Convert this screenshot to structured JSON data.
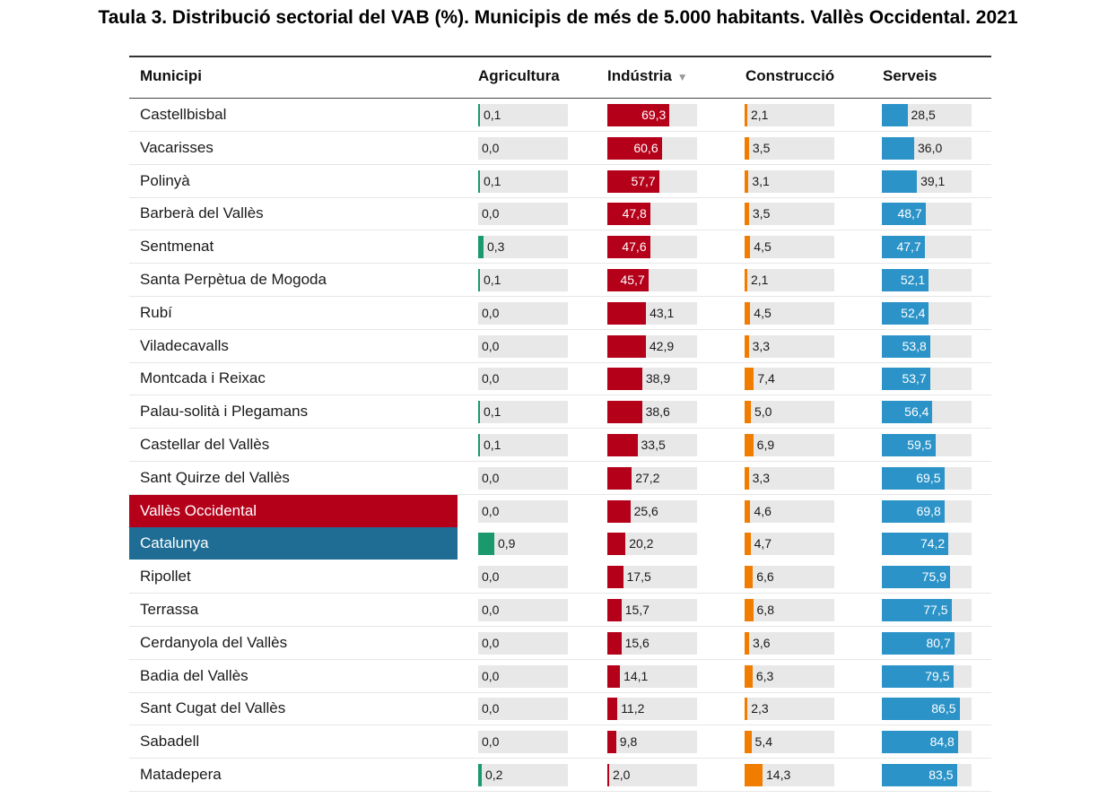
{
  "title": "Taula 3. Distribució sectorial del VAB (%). Municipis de més de 5.000 habitants. Vallès Occidental. 2021",
  "colors": {
    "agricultura": "#1a9a6c",
    "industria": "#b5001a",
    "construccio": "#f07c00",
    "serveis": "#2b93c8",
    "track": "#e8e8e8",
    "highlight_comarca": "#b5001a",
    "highlight_catalunya": "#1f6d94"
  },
  "sort_icon": "triangle-down-icon",
  "chart_data": {
    "type": "table",
    "columns": [
      "Municipi",
      "Agricultura",
      "Indústria",
      "Construcció",
      "Serveis"
    ],
    "sorted_by": "Indústria",
    "sort_order": "descending",
    "rows": [
      {
        "name": "Castellbisbal",
        "agricultura": "0,1",
        "industria": "69,3",
        "construccio": "2,1",
        "serveis": "28,5"
      },
      {
        "name": "Vacarisses",
        "agricultura": "0,0",
        "industria": "60,6",
        "construccio": "3,5",
        "serveis": "36,0"
      },
      {
        "name": "Polinyà",
        "agricultura": "0,1",
        "industria": "57,7",
        "construccio": "3,1",
        "serveis": "39,1"
      },
      {
        "name": "Barberà del Vallès",
        "agricultura": "0,0",
        "industria": "47,8",
        "construccio": "3,5",
        "serveis": "48,7"
      },
      {
        "name": "Sentmenat",
        "agricultura": "0,3",
        "industria": "47,6",
        "construccio": "4,5",
        "serveis": "47,7"
      },
      {
        "name": "Santa Perpètua de Mogoda",
        "agricultura": "0,1",
        "industria": "45,7",
        "construccio": "2,1",
        "serveis": "52,1"
      },
      {
        "name": "Rubí",
        "agricultura": "0,0",
        "industria": "43,1",
        "construccio": "4,5",
        "serveis": "52,4"
      },
      {
        "name": "Viladecavalls",
        "agricultura": "0,0",
        "industria": "42,9",
        "construccio": "3,3",
        "serveis": "53,8"
      },
      {
        "name": "Montcada i Reixac",
        "agricultura": "0,0",
        "industria": "38,9",
        "construccio": "7,4",
        "serveis": "53,7"
      },
      {
        "name": "Palau-solità i Plegamans",
        "agricultura": "0,1",
        "industria": "38,6",
        "construccio": "5,0",
        "serveis": "56,4"
      },
      {
        "name": "Castellar del Vallès",
        "agricultura": "0,1",
        "industria": "33,5",
        "construccio": "6,9",
        "serveis": "59,5"
      },
      {
        "name": "Sant Quirze del Vallès",
        "agricultura": "0,0",
        "industria": "27,2",
        "construccio": "3,3",
        "serveis": "69,5"
      },
      {
        "name": "Vallès Occidental",
        "agricultura": "0,0",
        "industria": "25,6",
        "construccio": "4,6",
        "serveis": "69,8",
        "highlight": "comarca"
      },
      {
        "name": "Catalunya",
        "agricultura": "0,9",
        "industria": "20,2",
        "construccio": "4,7",
        "serveis": "74,2",
        "highlight": "catalunya"
      },
      {
        "name": "Ripollet",
        "agricultura": "0,0",
        "industria": "17,5",
        "construccio": "6,6",
        "serveis": "75,9"
      },
      {
        "name": "Terrassa",
        "agricultura": "0,0",
        "industria": "15,7",
        "construccio": "6,8",
        "serveis": "77,5"
      },
      {
        "name": "Cerdanyola del Vallès",
        "agricultura": "0,0",
        "industria": "15,6",
        "construccio": "3,6",
        "serveis": "80,7"
      },
      {
        "name": "Badia del Vallès",
        "agricultura": "0,0",
        "industria": "14,1",
        "construccio": "6,3",
        "serveis": "79,5"
      },
      {
        "name": "Sant Cugat del Vallès",
        "agricultura": "0,0",
        "industria": "11,2",
        "construccio": "2,3",
        "serveis": "86,5"
      },
      {
        "name": "Sabadell",
        "agricultura": "0,0",
        "industria": "9,8",
        "construccio": "5,4",
        "serveis": "84,8"
      },
      {
        "name": "Matadepera",
        "agricultura": "0,2",
        "industria": "2,0",
        "construccio": "14,3",
        "serveis": "83,5"
      }
    ]
  }
}
